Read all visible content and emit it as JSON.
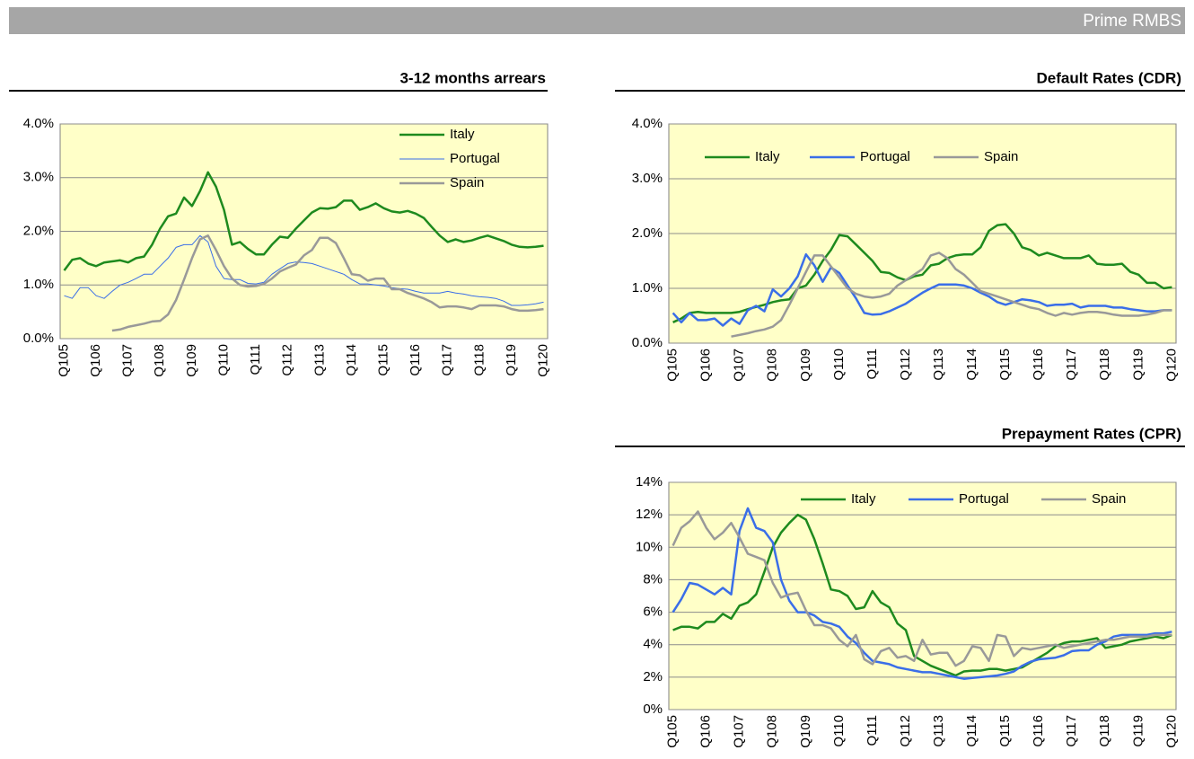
{
  "header": {
    "title": "Prime RMBS"
  },
  "chart_data": [
    {
      "type": "line",
      "title": "3-12 months arrears",
      "legend": "top-right",
      "grid": true,
      "background": "#ffffc8",
      "categories": [
        "Q105",
        null,
        null,
        null,
        "Q106",
        null,
        null,
        null,
        "Q107",
        null,
        null,
        null,
        "Q108",
        null,
        null,
        null,
        "Q109",
        null,
        null,
        null,
        "Q110",
        null,
        null,
        null,
        "Q111",
        null,
        null,
        null,
        "Q112",
        null,
        null,
        null,
        "Q113",
        null,
        null,
        null,
        "Q114",
        null,
        null,
        null,
        "Q115",
        null,
        null,
        null,
        "Q116",
        null,
        null,
        null,
        "Q117",
        null,
        null,
        null,
        "Q118",
        null,
        null,
        null,
        "Q119",
        null,
        null,
        null,
        "Q120"
      ],
      "ylim": [
        0,
        4
      ],
      "yticks": [
        {
          "value": 0,
          "label": "0.0%"
        },
        {
          "value": 1,
          "label": "1.0%"
        },
        {
          "value": 2,
          "label": "2.0%"
        },
        {
          "value": 3,
          "label": "3.0%"
        },
        {
          "value": 4,
          "label": "4.0%"
        }
      ],
      "series": [
        {
          "name": "Italy",
          "color": "#1e8a1e",
          "width": 2.5,
          "values": [
            1.27,
            1.47,
            1.5,
            1.4,
            1.35,
            1.42,
            1.44,
            1.46,
            1.42,
            1.5,
            1.53,
            1.75,
            2.05,
            2.28,
            2.33,
            2.63,
            2.47,
            2.75,
            3.1,
            2.83,
            2.4,
            1.75,
            1.8,
            1.67,
            1.57,
            1.57,
            1.75,
            1.9,
            1.88,
            2.05,
            2.2,
            2.35,
            2.43,
            2.42,
            2.45,
            2.57,
            2.57,
            2.4,
            2.45,
            2.52,
            2.43,
            2.37,
            2.35,
            2.38,
            2.33,
            2.25,
            2.08,
            1.92,
            1.8,
            1.85,
            1.8,
            1.83,
            1.88,
            1.92,
            1.87,
            1.82,
            1.75,
            1.71,
            1.7,
            1.71,
            1.73
          ]
        },
        {
          "name": "Portugal",
          "color": "#3a6ee8",
          "width": 1,
          "values": [
            0.8,
            0.75,
            0.95,
            0.95,
            0.8,
            0.75,
            0.88,
            1.0,
            1.05,
            1.12,
            1.2,
            1.2,
            1.35,
            1.5,
            1.7,
            1.75,
            1.75,
            1.92,
            1.8,
            1.35,
            1.12,
            1.1,
            1.1,
            1.03,
            1.02,
            1.05,
            1.2,
            1.3,
            1.4,
            1.43,
            1.42,
            1.4,
            1.35,
            1.3,
            1.25,
            1.2,
            1.1,
            1.02,
            1.02,
            1.0,
            0.98,
            0.95,
            0.93,
            0.92,
            0.88,
            0.85,
            0.85,
            0.85,
            0.88,
            0.85,
            0.83,
            0.8,
            0.78,
            0.77,
            0.75,
            0.7,
            0.62,
            0.62,
            0.63,
            0.65,
            0.68
          ]
        },
        {
          "name": "Spain",
          "color": "#999999",
          "width": 2.5,
          "values": [
            null,
            null,
            null,
            null,
            null,
            null,
            0.15,
            0.17,
            0.22,
            0.25,
            0.28,
            0.32,
            0.33,
            0.45,
            0.72,
            1.1,
            1.5,
            1.85,
            1.92,
            1.65,
            1.35,
            1.12,
            1.0,
            0.97,
            0.98,
            1.02,
            1.12,
            1.25,
            1.32,
            1.38,
            1.55,
            1.65,
            1.88,
            1.88,
            1.78,
            1.5,
            1.2,
            1.18,
            1.08,
            1.12,
            1.12,
            0.92,
            0.92,
            0.85,
            0.8,
            0.75,
            0.68,
            0.58,
            0.6,
            0.6,
            0.58,
            0.55,
            0.62,
            0.62,
            0.62,
            0.6,
            0.55,
            0.52,
            0.52,
            0.53,
            0.55
          ]
        }
      ]
    },
    {
      "type": "line",
      "title": "Default Rates (CDR)",
      "legend": "top",
      "grid": true,
      "background": "#ffffc8",
      "categories": [
        "Q105",
        null,
        null,
        null,
        "Q106",
        null,
        null,
        null,
        "Q107",
        null,
        null,
        null,
        "Q108",
        null,
        null,
        null,
        "Q109",
        null,
        null,
        null,
        "Q110",
        null,
        null,
        null,
        "Q111",
        null,
        null,
        null,
        "Q112",
        null,
        null,
        null,
        "Q113",
        null,
        null,
        null,
        "Q114",
        null,
        null,
        null,
        "Q115",
        null,
        null,
        null,
        "Q116",
        null,
        null,
        null,
        "Q117",
        null,
        null,
        null,
        "Q118",
        null,
        null,
        null,
        "Q119",
        null,
        null,
        null,
        "Q120"
      ],
      "ylim": [
        0,
        4
      ],
      "yticks": [
        {
          "value": 0,
          "label": "0.0%"
        },
        {
          "value": 1,
          "label": "1.0%"
        },
        {
          "value": 2,
          "label": "2.0%"
        },
        {
          "value": 3,
          "label": "3.0%"
        },
        {
          "value": 4,
          "label": "4.0%"
        }
      ],
      "series": [
        {
          "name": "Italy",
          "color": "#1e8a1e",
          "width": 2.5,
          "values": [
            0.38,
            0.45,
            0.55,
            0.57,
            0.55,
            0.55,
            0.55,
            0.55,
            0.57,
            0.62,
            0.66,
            0.7,
            0.75,
            0.78,
            0.8,
            1.0,
            1.05,
            1.25,
            1.5,
            1.7,
            1.97,
            1.95,
            1.8,
            1.65,
            1.5,
            1.3,
            1.28,
            1.2,
            1.15,
            1.22,
            1.25,
            1.42,
            1.45,
            1.55,
            1.6,
            1.62,
            1.62,
            1.75,
            2.05,
            2.15,
            2.17,
            2.0,
            1.75,
            1.7,
            1.6,
            1.65,
            1.6,
            1.55,
            1.55,
            1.55,
            1.6,
            1.45,
            1.43,
            1.43,
            1.45,
            1.3,
            1.25,
            1.1,
            1.1,
            1.0,
            1.02
          ]
        },
        {
          "name": "Portugal",
          "color": "#3a6ee8",
          "width": 2.5,
          "values": [
            0.55,
            0.38,
            0.55,
            0.42,
            0.42,
            0.45,
            0.32,
            0.45,
            0.35,
            0.6,
            0.68,
            0.58,
            0.98,
            0.85,
            1.0,
            1.22,
            1.62,
            1.42,
            1.12,
            1.38,
            1.28,
            1.05,
            0.82,
            0.55,
            0.52,
            0.53,
            0.58,
            0.65,
            0.72,
            0.82,
            0.92,
            1.0,
            1.07,
            1.07,
            1.07,
            1.05,
            1.0,
            0.92,
            0.85,
            0.75,
            0.7,
            0.75,
            0.8,
            0.78,
            0.75,
            0.68,
            0.7,
            0.7,
            0.72,
            0.65,
            0.68,
            0.68,
            0.68,
            0.65,
            0.65,
            0.62,
            0.6,
            0.58,
            0.58,
            0.6,
            0.6
          ]
        },
        {
          "name": "Spain",
          "color": "#999999",
          "width": 2.5,
          "values": [
            null,
            null,
            null,
            null,
            null,
            null,
            null,
            0.12,
            0.15,
            0.18,
            0.22,
            0.25,
            0.3,
            0.42,
            0.7,
            1.0,
            1.3,
            1.6,
            1.6,
            1.4,
            1.2,
            1.0,
            0.9,
            0.85,
            0.83,
            0.85,
            0.9,
            1.05,
            1.15,
            1.25,
            1.35,
            1.6,
            1.65,
            1.55,
            1.35,
            1.25,
            1.1,
            0.95,
            0.9,
            0.85,
            0.8,
            0.75,
            0.7,
            0.65,
            0.62,
            0.55,
            0.5,
            0.55,
            0.52,
            0.55,
            0.57,
            0.57,
            0.55,
            0.52,
            0.5,
            0.5,
            0.5,
            0.52,
            0.55,
            0.6,
            0.6
          ]
        }
      ]
    },
    {
      "type": "line",
      "title": "Prepayment Rates (CPR)",
      "legend": "top",
      "grid": true,
      "background": "#ffffc8",
      "categories": [
        "Q105",
        null,
        null,
        null,
        "Q106",
        null,
        null,
        null,
        "Q107",
        null,
        null,
        null,
        "Q108",
        null,
        null,
        null,
        "Q109",
        null,
        null,
        null,
        "Q110",
        null,
        null,
        null,
        "Q111",
        null,
        null,
        null,
        "Q112",
        null,
        null,
        null,
        "Q113",
        null,
        null,
        null,
        "Q114",
        null,
        null,
        null,
        "Q115",
        null,
        null,
        null,
        "Q116",
        null,
        null,
        null,
        "Q117",
        null,
        null,
        null,
        "Q118",
        null,
        null,
        null,
        "Q119",
        null,
        null,
        null,
        "Q120"
      ],
      "ylim": [
        0,
        14
      ],
      "yticks": [
        {
          "value": 0,
          "label": "0%"
        },
        {
          "value": 2,
          "label": "2%"
        },
        {
          "value": 4,
          "label": "4%"
        },
        {
          "value": 6,
          "label": "6%"
        },
        {
          "value": 8,
          "label": "8%"
        },
        {
          "value": 10,
          "label": "10%"
        },
        {
          "value": 12,
          "label": "12%"
        },
        {
          "value": 14,
          "label": "14%"
        }
      ],
      "series": [
        {
          "name": "Italy",
          "color": "#1e8a1e",
          "width": 2.5,
          "values": [
            4.9,
            5.1,
            5.1,
            5.0,
            5.4,
            5.4,
            5.9,
            5.6,
            6.4,
            6.6,
            7.1,
            8.5,
            10.0,
            10.9,
            11.5,
            12.0,
            11.7,
            10.5,
            9.0,
            7.4,
            7.3,
            7.0,
            6.2,
            6.3,
            7.3,
            6.6,
            6.3,
            5.3,
            4.9,
            3.3,
            3.0,
            2.7,
            2.5,
            2.3,
            2.1,
            2.35,
            2.4,
            2.4,
            2.5,
            2.5,
            2.4,
            2.5,
            2.6,
            2.9,
            3.2,
            3.5,
            3.9,
            4.1,
            4.2,
            4.2,
            4.3,
            4.4,
            3.8,
            3.9,
            4.0,
            4.2,
            4.3,
            4.4,
            4.5,
            4.4,
            4.6
          ]
        },
        {
          "name": "Portugal",
          "color": "#3a6ee8",
          "width": 2.5,
          "values": [
            6.0,
            6.8,
            7.8,
            7.7,
            7.4,
            7.1,
            7.5,
            7.1,
            11.0,
            12.4,
            11.2,
            11.0,
            10.3,
            8.0,
            6.7,
            6.0,
            6.0,
            5.8,
            5.4,
            5.3,
            5.1,
            4.5,
            4.1,
            3.5,
            3.0,
            2.9,
            2.8,
            2.6,
            2.5,
            2.4,
            2.3,
            2.3,
            2.2,
            2.1,
            2.0,
            1.9,
            1.95,
            2.0,
            2.05,
            2.1,
            2.2,
            2.35,
            2.7,
            2.95,
            3.1,
            3.15,
            3.2,
            3.35,
            3.6,
            3.65,
            3.65,
            4.0,
            4.2,
            4.5,
            4.6,
            4.6,
            4.6,
            4.6,
            4.7,
            4.7,
            4.8
          ]
        },
        {
          "name": "Spain",
          "color": "#999999",
          "width": 2.5,
          "values": [
            10.1,
            11.2,
            11.6,
            12.2,
            11.2,
            10.5,
            10.9,
            11.5,
            10.6,
            9.6,
            9.4,
            9.2,
            7.8,
            6.9,
            7.1,
            7.2,
            6.1,
            5.2,
            5.2,
            5.0,
            4.3,
            3.9,
            4.6,
            3.1,
            2.8,
            3.6,
            3.8,
            3.2,
            3.3,
            3.0,
            4.3,
            3.4,
            3.5,
            3.5,
            2.7,
            3.0,
            3.9,
            3.8,
            3.0,
            4.6,
            4.5,
            3.3,
            3.8,
            3.7,
            3.8,
            3.9,
            4.0,
            3.8,
            3.9,
            4.0,
            4.1,
            4.2,
            4.3,
            4.3,
            4.4,
            4.5,
            4.5,
            4.5,
            4.6,
            4.6,
            4.6
          ]
        }
      ]
    }
  ]
}
